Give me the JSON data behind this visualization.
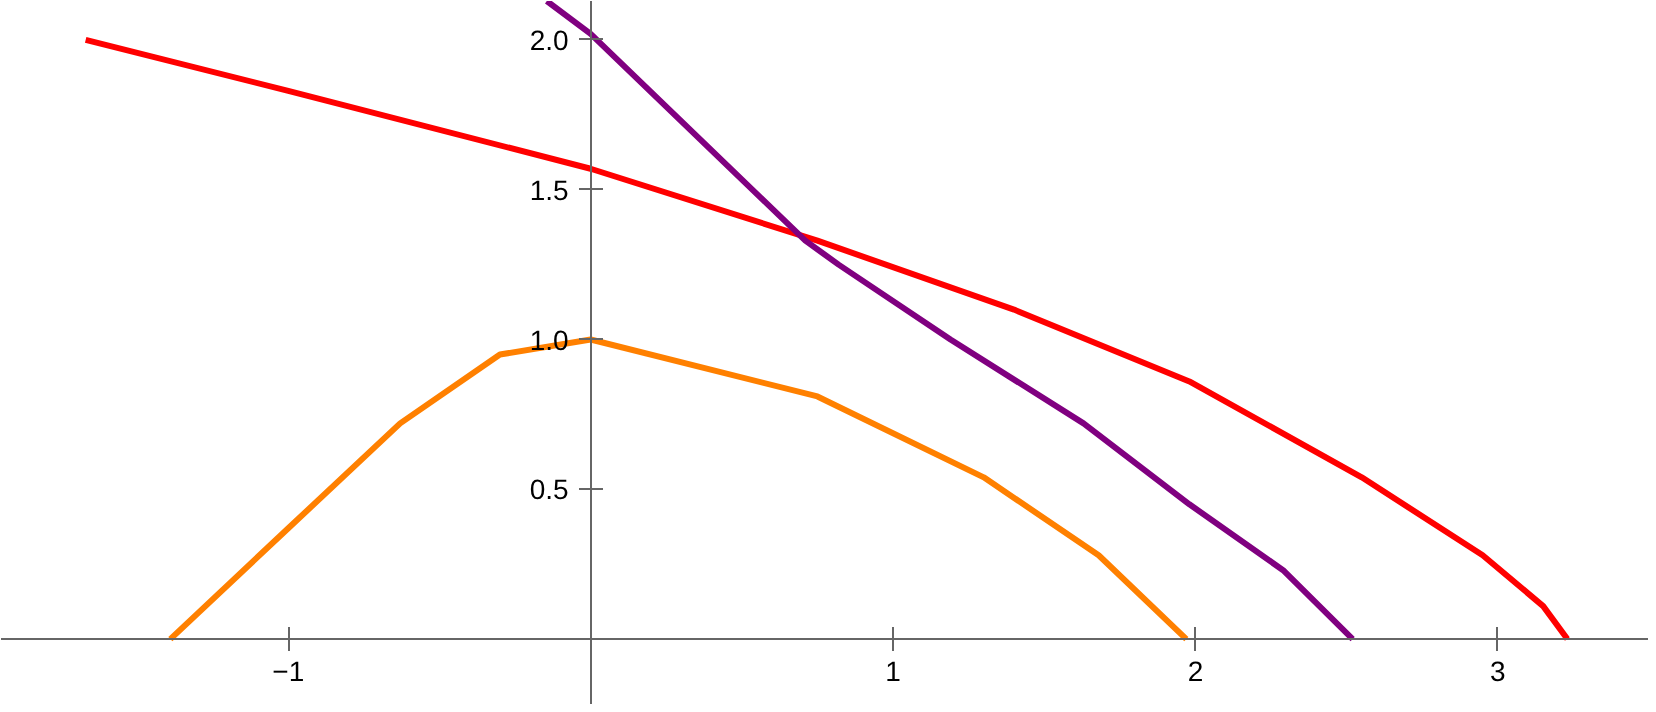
{
  "chart_data": {
    "type": "line",
    "xlim": [
      -1.95,
      3.5
    ],
    "ylim": [
      -0.22,
      2.13
    ],
    "xticks": [
      -1,
      1,
      2,
      3
    ],
    "yticks": [
      0.5,
      {
        "value": 1,
        "label": "1.0"
      },
      1.5,
      {
        "value": 2,
        "label": "2.0"
      }
    ],
    "grid": false,
    "marker": "none",
    "line_style": "solid",
    "series": [
      {
        "color": "#ff0000",
        "x": [
          -1.67,
          -1,
          0,
          0.75,
          1.4,
          1.98,
          2.55,
          2.95,
          3.15,
          3.23
        ],
        "values": [
          2.0,
          1.83,
          1.57,
          1.33,
          1.1,
          0.86,
          0.54,
          0.28,
          0.11,
          0
        ]
      },
      {
        "color": "#800080",
        "x": [
          -0.145,
          0,
          0.71,
          0.82,
          1.19,
          1.63,
          1.98,
          2.29,
          2.52
        ],
        "values": [
          2.13,
          2.02,
          1.33,
          1.25,
          1.0,
          0.72,
          0.45,
          0.23,
          0
        ]
      },
      {
        "color": "#ff8000",
        "x": [
          -1.39,
          -1,
          -0.63,
          -0.3,
          0,
          0.75,
          1.3,
          1.68,
          1.97
        ],
        "values": [
          0,
          0.37,
          0.72,
          0.95,
          1.0,
          0.81,
          0.54,
          0.28,
          0
        ]
      }
    ]
  }
}
